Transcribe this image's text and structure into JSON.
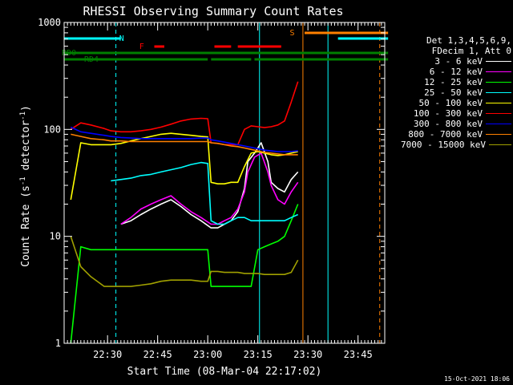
{
  "chart_data": {
    "type": "line",
    "title": "RHESSI Observing Summary Count Rates",
    "xlabel": "Start Time (08-Mar-04 22:17:02)",
    "ylabel_parts": [
      "Count Rate (s",
      "-1",
      " detector",
      "-1",
      ")"
    ],
    "yscale": "log",
    "ylim": [
      1,
      1000
    ],
    "y_tick_labels": [
      {
        "value": 1,
        "label": "1"
      },
      {
        "value": 10,
        "label": "10"
      },
      {
        "value": 100,
        "label": "100"
      },
      {
        "value": 1000,
        "label": "1000"
      }
    ],
    "xlim_minutes": [
      0,
      96
    ],
    "x_ticks": [
      {
        "min": 13,
        "label": "22:30"
      },
      {
        "min": 28,
        "label": "22:45"
      },
      {
        "min": 43,
        "label": "23:00"
      },
      {
        "min": 58,
        "label": "23:15"
      },
      {
        "min": 73,
        "label": "23:30"
      },
      {
        "min": 88,
        "label": "23:45"
      }
    ],
    "legend_header": [
      "Det 1,3,4,5,6,9,",
      "FDecim 1, Att 0"
    ],
    "series": [
      {
        "name": "3 - 6 keV",
        "color": "#ffffff",
        "x": [
          2,
          8,
          12,
          14,
          17,
          20,
          23,
          26,
          29,
          32,
          35,
          38,
          41,
          44,
          46,
          48,
          50,
          52,
          54,
          55,
          57,
          59,
          61,
          62,
          64,
          66,
          68,
          70
        ],
        "y": [
          null,
          null,
          null,
          null,
          13,
          14,
          16,
          18,
          20,
          22,
          19,
          16,
          14,
          12,
          12,
          13,
          14,
          17,
          28,
          50,
          60,
          75,
          50,
          32,
          28,
          26,
          34,
          40
        ]
      },
      {
        "name": "6 - 12 keV",
        "color": "#ff00ff",
        "x": [
          2,
          8,
          12,
          14,
          17,
          20,
          23,
          26,
          29,
          32,
          35,
          38,
          41,
          44,
          46,
          48,
          50,
          52,
          54,
          55,
          57,
          59,
          61,
          62,
          64,
          66,
          68,
          70
        ],
        "y": [
          null,
          null,
          null,
          null,
          13,
          15,
          18,
          20,
          22,
          24,
          20,
          17,
          15,
          13,
          13,
          14,
          15,
          18,
          26,
          40,
          55,
          60,
          40,
          30,
          22,
          20,
          26,
          32
        ]
      },
      {
        "name": "12 - 25 keV",
        "color": "#00ff00",
        "x": [
          2,
          5,
          8,
          12,
          14,
          17,
          20,
          23,
          26,
          29,
          32,
          35,
          38,
          41,
          43,
          44,
          46,
          48,
          50,
          52,
          54,
          56,
          58,
          60,
          62,
          64,
          66,
          68,
          70
        ],
        "y": [
          1,
          8,
          7.5,
          7.5,
          7.5,
          7.5,
          7.5,
          7.5,
          7.5,
          7.5,
          7.5,
          7.5,
          7.5,
          7.5,
          7.5,
          3.4,
          3.4,
          3.4,
          3.4,
          3.4,
          3.4,
          3.4,
          7.5,
          8,
          8.5,
          9,
          10,
          14,
          20
        ]
      },
      {
        "name": "25 - 50 keV",
        "color": "#00ffff",
        "x": [
          2,
          5,
          8,
          12,
          14,
          17,
          20,
          23,
          26,
          29,
          32,
          35,
          38,
          41,
          43,
          44,
          46,
          48,
          50,
          52,
          54,
          56,
          58,
          60,
          62,
          64,
          66,
          68,
          70
        ],
        "y": [
          null,
          null,
          null,
          null,
          33,
          34,
          35,
          37,
          38,
          40,
          42,
          44,
          47,
          49,
          48,
          14,
          13,
          13,
          14,
          15,
          15,
          14,
          14,
          14,
          14,
          14,
          14,
          15,
          16
        ]
      },
      {
        "name": "50 - 100 keV",
        "color": "#ffff00",
        "x": [
          2,
          5,
          8,
          12,
          14,
          17,
          20,
          23,
          26,
          29,
          32,
          35,
          38,
          41,
          43,
          44,
          46,
          48,
          50,
          52,
          54,
          56,
          58,
          60,
          62,
          64,
          66,
          68,
          70
        ],
        "y": [
          22,
          75,
          72,
          72,
          72,
          74,
          78,
          82,
          86,
          90,
          92,
          90,
          88,
          86,
          85,
          32,
          31,
          31,
          32,
          32,
          45,
          60,
          62,
          60,
          58,
          57,
          58,
          60,
          62
        ]
      },
      {
        "name": "100 - 300 keV",
        "color": "#ff0000",
        "x": [
          2,
          5,
          8,
          12,
          14,
          17,
          20,
          23,
          26,
          29,
          32,
          35,
          38,
          41,
          43,
          44,
          46,
          48,
          50,
          52,
          54,
          56,
          58,
          60,
          62,
          64,
          66,
          68,
          70
        ],
        "y": [
          100,
          115,
          110,
          102,
          97,
          95,
          95,
          97,
          100,
          105,
          112,
          120,
          125,
          127,
          126,
          75,
          74,
          72,
          72,
          72,
          100,
          108,
          106,
          104,
          106,
          110,
          120,
          180,
          280
        ]
      },
      {
        "name": "300 - 800 keV",
        "color": "#0000ff",
        "x": [
          2,
          5,
          8,
          12,
          14,
          17,
          20,
          23,
          26,
          29,
          32,
          35,
          38,
          41,
          43,
          44,
          46,
          48,
          50,
          52,
          54,
          56,
          58,
          60,
          62,
          64,
          66,
          68,
          70
        ],
        "y": [
          105,
          95,
          92,
          88,
          86,
          84,
          83,
          82,
          82,
          82,
          82,
          82,
          82,
          83,
          83,
          80,
          78,
          76,
          74,
          72,
          70,
          68,
          66,
          64,
          63,
          62,
          62,
          62,
          63
        ]
      },
      {
        "name": "800 - 7000 keV",
        "color": "#ff8000",
        "x": [
          2,
          5,
          8,
          12,
          14,
          17,
          20,
          23,
          26,
          29,
          32,
          35,
          38,
          41,
          43,
          44,
          46,
          48,
          50,
          52,
          54,
          56,
          58,
          60,
          62,
          64,
          66,
          68,
          70
        ],
        "y": [
          90,
          86,
          82,
          80,
          78,
          78,
          77,
          77,
          77,
          77,
          77,
          77,
          77,
          77,
          77,
          75,
          74,
          72,
          70,
          69,
          67,
          65,
          63,
          61,
          60,
          59,
          58,
          58,
          58
        ]
      },
      {
        "name": "7000 - 15000 keV",
        "color": "#a0a000",
        "x": [
          2,
          5,
          8,
          12,
          14,
          17,
          20,
          23,
          26,
          29,
          32,
          35,
          38,
          41,
          43,
          44,
          46,
          48,
          50,
          52,
          54,
          56,
          58,
          60,
          62,
          64,
          66,
          68,
          70
        ],
        "y": [
          10,
          5.2,
          4.2,
          3.4,
          3.4,
          3.4,
          3.4,
          3.5,
          3.6,
          3.8,
          3.9,
          3.9,
          3.9,
          3.8,
          3.8,
          4.7,
          4.7,
          4.6,
          4.6,
          4.6,
          4.5,
          4.5,
          4.5,
          4.4,
          4.4,
          4.4,
          4.4,
          4.6,
          6
        ]
      }
    ],
    "state_flags": [
      {
        "label": "N",
        "color": "#00ffff",
        "segments": [
          [
            0,
            17
          ],
          [
            82,
            97
          ]
        ]
      },
      {
        "label": "F",
        "color": "#ff0000",
        "segments": [
          [
            27,
            30
          ],
          [
            45,
            50
          ],
          [
            52,
            65
          ]
        ]
      },
      {
        "label": "S",
        "color": "#ff8000",
        "segments": [
          [
            72,
            97
          ]
        ]
      },
      {
        "label": "RD0",
        "color": "#008000",
        "segments": [
          [
            0,
            97
          ]
        ]
      },
      {
        "label": "RD4",
        "color": "#008000",
        "segments": [
          [
            0,
            43
          ],
          [
            44,
            56
          ],
          [
            57,
            97
          ]
        ]
      }
    ],
    "vertical_markers": [
      {
        "min": 0,
        "color": "#00ffff",
        "style": "solid"
      },
      {
        "min": 15.5,
        "color": "#00ffff",
        "style": "dashed"
      },
      {
        "min": 58.5,
        "color": "#00ffff",
        "style": "solid"
      },
      {
        "min": 71.5,
        "color": "#ff8000",
        "style": "solid"
      },
      {
        "min": 79,
        "color": "#00ffff",
        "style": "solid"
      },
      {
        "min": 94.5,
        "color": "#ff8000",
        "style": "dashed"
      }
    ],
    "footer": "15-Oct-2021 18:06",
    "grid": false,
    "legend_position": "right"
  }
}
